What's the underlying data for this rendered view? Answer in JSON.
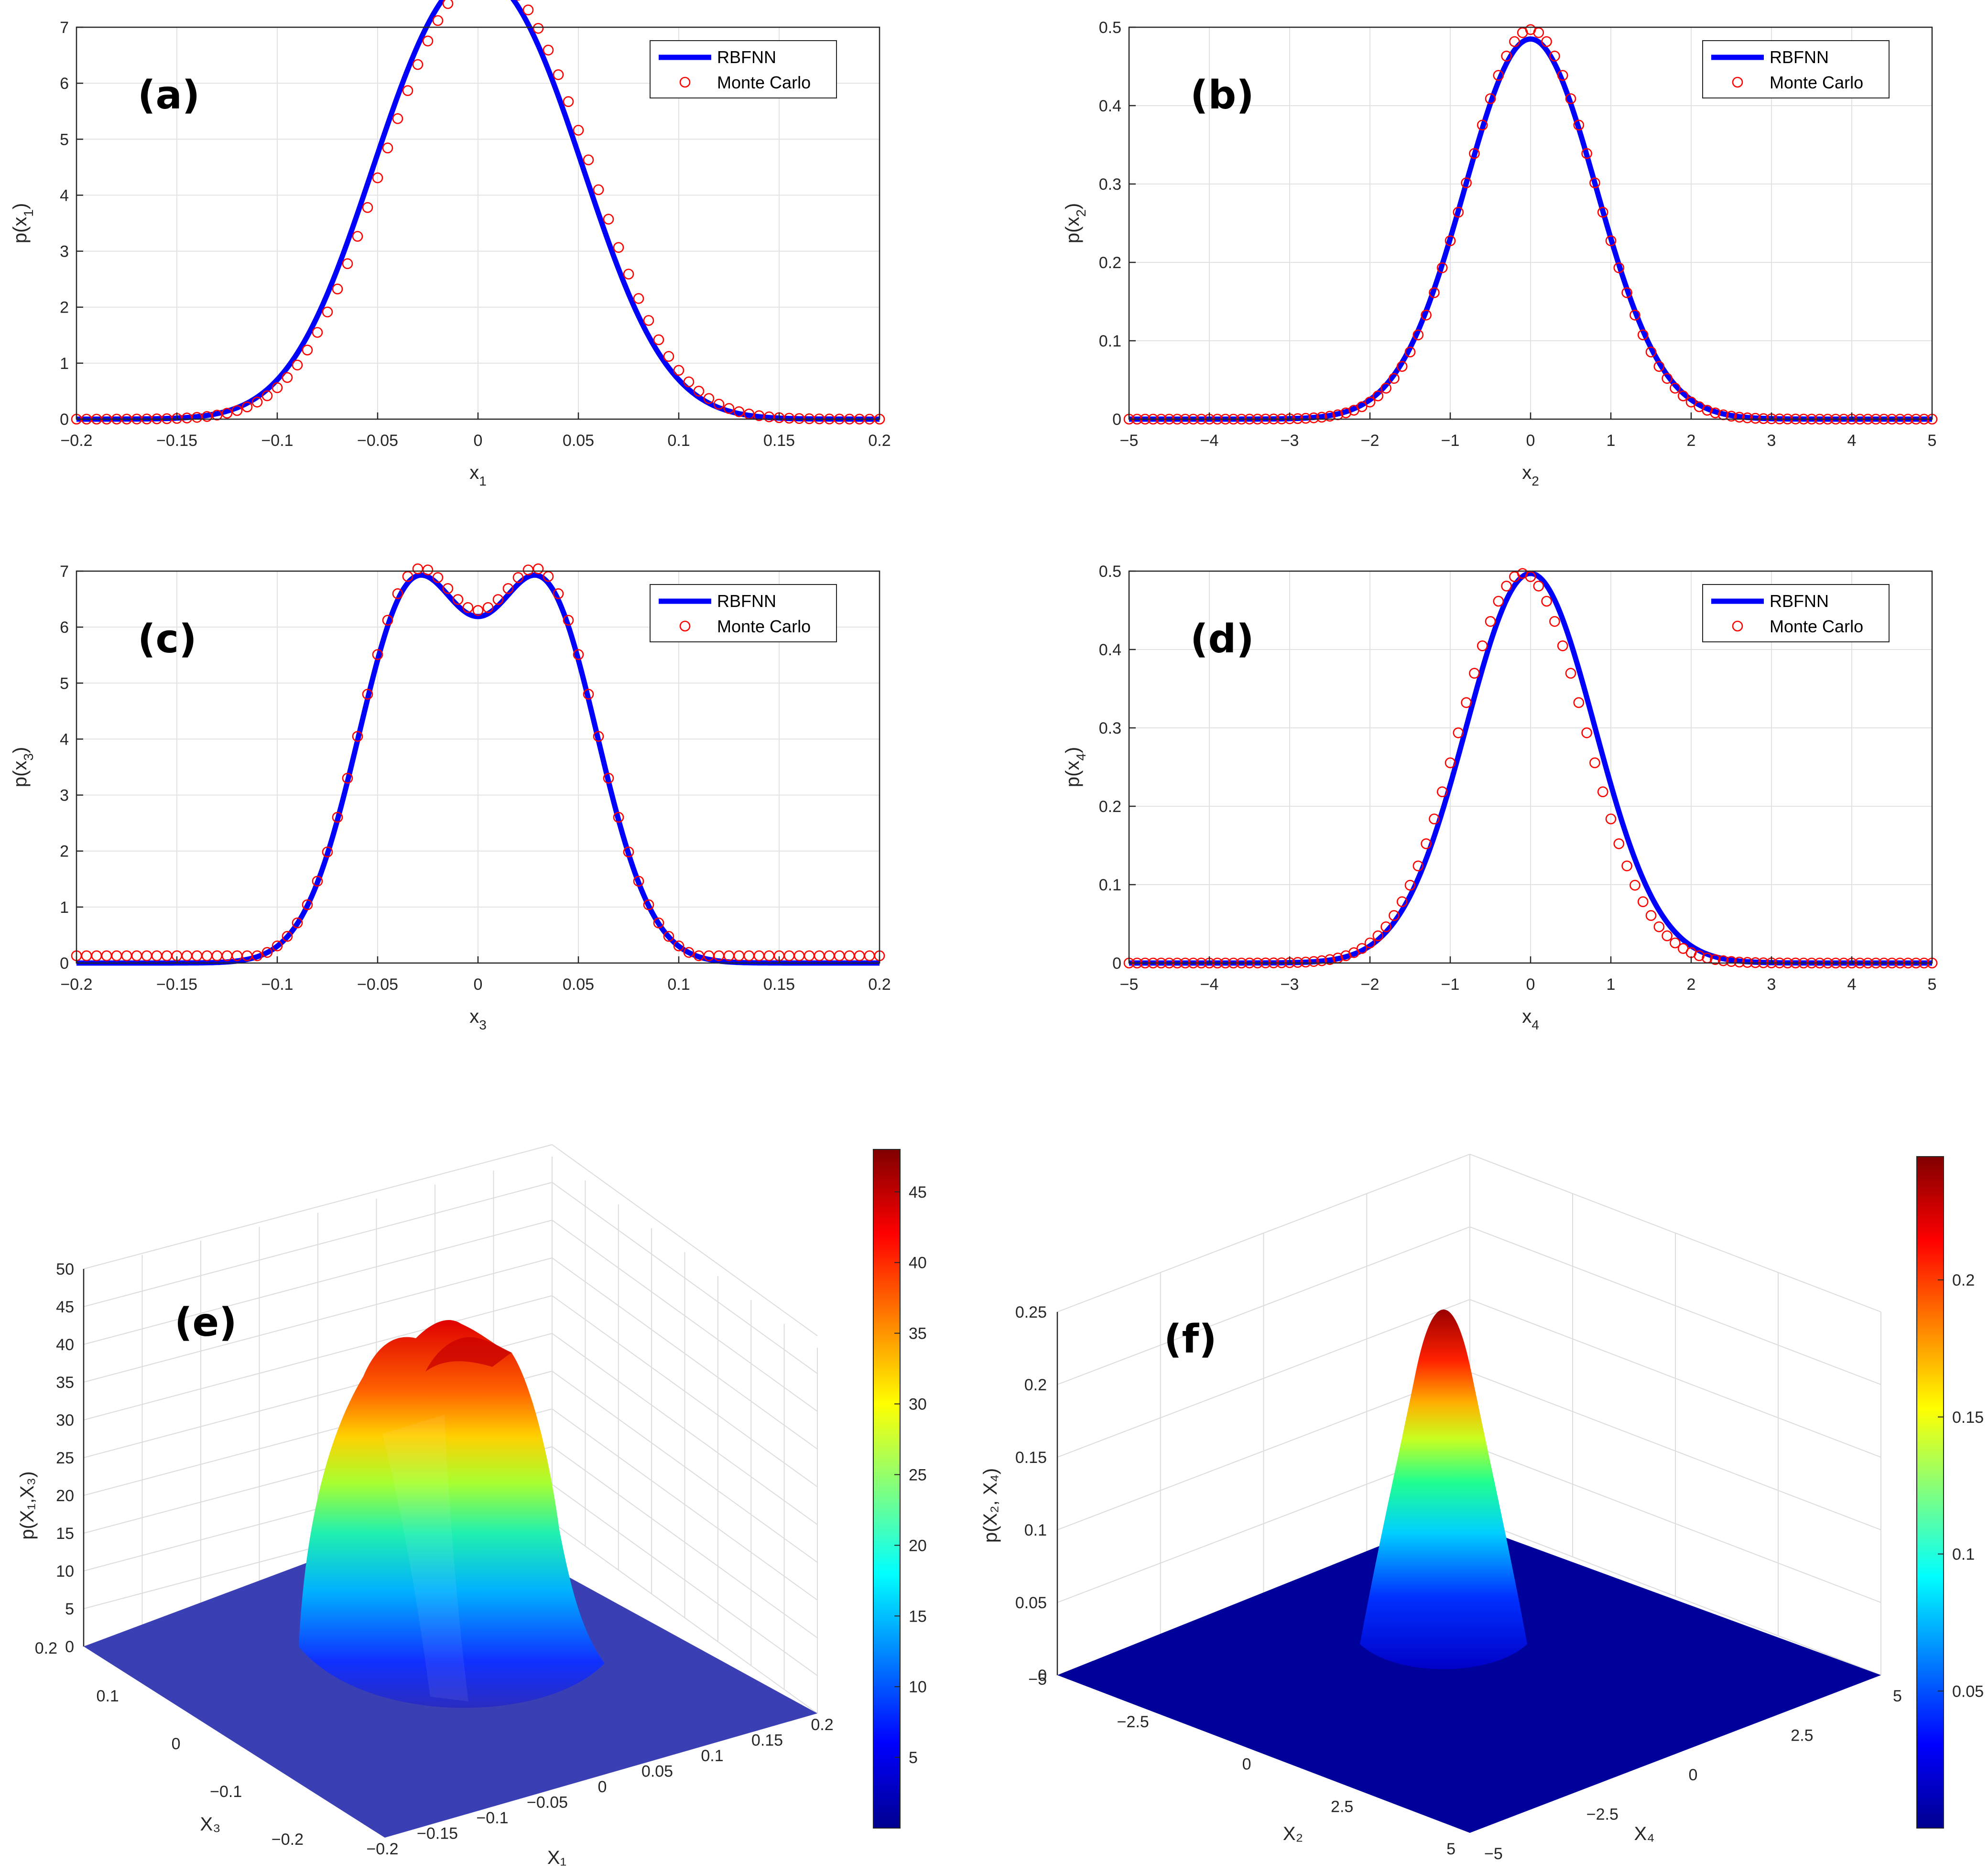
{
  "figure": {
    "panels": [
      {
        "id": "a",
        "label": "(a)",
        "xlabel": "x",
        "xsub": "1",
        "ylabel_pre": "p(x",
        "ysub": "1",
        "ylabel_post": ")",
        "legend": [
          "RBFNN",
          "Monte Carlo"
        ]
      },
      {
        "id": "b",
        "label": "(b)",
        "xlabel": "x",
        "xsub": "2",
        "ylabel_pre": "p(x",
        "ysub": "2",
        "ylabel_post": ")",
        "legend": [
          "RBFNN",
          "Monte Carlo"
        ]
      },
      {
        "id": "c",
        "label": "(c)",
        "xlabel": "x",
        "xsub": "3",
        "ylabel_pre": "p(x",
        "ysub": "3",
        "ylabel_post": ")",
        "legend": [
          "RBFNN",
          "Monte Carlo"
        ]
      },
      {
        "id": "d",
        "label": "(d)",
        "xlabel": "x",
        "xsub": "4",
        "ylabel_pre": "p(x",
        "ysub": "4",
        "ylabel_post": ")",
        "legend": [
          "RBFNN",
          "Monte Carlo"
        ]
      },
      {
        "id": "e",
        "label": "(e)",
        "zlabel": "p(X₁,X₃)",
        "xlabel": "X₁",
        "ylabel": "X₃"
      },
      {
        "id": "f",
        "label": "(f)",
        "zlabel": "p(X₂, X₄)",
        "xlabel": "X₄",
        "ylabel": "X₂"
      }
    ]
  },
  "chart_data": [
    {
      "id": "a",
      "type": "line",
      "series": [
        {
          "name": "RBFNN",
          "kind": "line",
          "color": "#0000ff",
          "model": "bimodal",
          "params": {
            "mu": 0.026,
            "sigma": 0.037,
            "amplitude": 6.98,
            "shift": 0.0
          }
        },
        {
          "name": "Monte Carlo",
          "kind": "scatter",
          "color": "#ff0000",
          "model": "bimodal",
          "params": {
            "mu": 0.026,
            "sigma": 0.037,
            "amplitude": 6.98,
            "shift": 0.004
          },
          "x_range": [
            -0.2,
            0.2
          ],
          "n_points": 81
        }
      ],
      "xlabel": "x1",
      "ylabel": "p(x1)",
      "xlim": [
        -0.2,
        0.2
      ],
      "ylim": [
        0,
        7
      ],
      "xticks": [
        -0.2,
        -0.15,
        -0.1,
        -0.05,
        0,
        0.05,
        0.1,
        0.15,
        0.2
      ],
      "xtick_labels": [
        "−0.2",
        "−0.15",
        "−0.1",
        "−0.05",
        "0",
        "0.05",
        "0.1",
        "0.15",
        "0.2"
      ],
      "yticks": [
        0,
        1,
        2,
        3,
        4,
        5,
        6,
        7
      ],
      "ytick_labels": [
        "0",
        "1",
        "2",
        "3",
        "4",
        "5",
        "6",
        "7"
      ],
      "grid": true,
      "legend_position": "top-right"
    },
    {
      "id": "b",
      "type": "line",
      "series": [
        {
          "name": "RBFNN",
          "kind": "line",
          "color": "#0000ff",
          "model": "gaussian",
          "params": {
            "mu": 0.0,
            "sigma": 0.82,
            "amplitude": 0.485
          }
        },
        {
          "name": "Monte Carlo",
          "kind": "scatter",
          "color": "#ff0000",
          "model": "gaussian",
          "params": {
            "mu": 0.0,
            "sigma": 0.8,
            "amplitude": 0.497
          },
          "x_range": [
            -5,
            5
          ],
          "n_points": 101
        }
      ],
      "xlabel": "x2",
      "ylabel": "p(x2)",
      "xlim": [
        -5,
        5
      ],
      "ylim": [
        0,
        0.5
      ],
      "xticks": [
        -5,
        -4,
        -3,
        -2,
        -1,
        0,
        1,
        2,
        3,
        4,
        5
      ],
      "xtick_labels": [
        "−5",
        "−4",
        "−3",
        "−2",
        "−1",
        "0",
        "1",
        "2",
        "3",
        "4",
        "5"
      ],
      "yticks": [
        0,
        0.1,
        0.2,
        0.3,
        0.4,
        0.5
      ],
      "ytick_labels": [
        "0",
        "0.1",
        "0.2",
        "0.3",
        "0.4",
        "0.5"
      ],
      "grid": true,
      "legend_position": "top-right"
    },
    {
      "id": "c",
      "type": "line",
      "series": [
        {
          "name": "RBFNN",
          "kind": "line",
          "color": "#0000ff",
          "model": "bimodal",
          "params": {
            "mu": 0.033,
            "sigma": 0.027,
            "amplitude": 6.86,
            "shift": 0.0
          }
        },
        {
          "name": "Monte Carlo",
          "kind": "scatter",
          "color": "#ff0000",
          "model": "bimodal",
          "params": {
            "mu": 0.033,
            "sigma": 0.027,
            "amplitude": 6.98,
            "shift": 0.0,
            "floor": 0.13
          },
          "x_range": [
            -0.2,
            0.2
          ],
          "n_points": 81
        }
      ],
      "xlabel": "x3",
      "ylabel": "p(x3)",
      "xlim": [
        -0.2,
        0.2
      ],
      "ylim": [
        0,
        7
      ],
      "xticks": [
        -0.2,
        -0.15,
        -0.1,
        -0.05,
        0,
        0.05,
        0.1,
        0.15,
        0.2
      ],
      "xtick_labels": [
        "−0.2",
        "−0.15",
        "−0.1",
        "−0.05",
        "0",
        "0.05",
        "0.1",
        "0.15",
        "0.2"
      ],
      "yticks": [
        0,
        1,
        2,
        3,
        4,
        5,
        6,
        7
      ],
      "ytick_labels": [
        "0",
        "1",
        "2",
        "3",
        "4",
        "5",
        "6",
        "7"
      ],
      "grid": true,
      "legend_position": "top-right"
    },
    {
      "id": "d",
      "type": "line",
      "series": [
        {
          "name": "RBFNN",
          "kind": "line",
          "color": "#0000ff",
          "model": "gaussian",
          "params": {
            "mu": 0.0,
            "sigma": 0.8,
            "amplitude": 0.497
          }
        },
        {
          "name": "Monte Carlo",
          "kind": "scatter",
          "color": "#ff0000",
          "model": "gaussian",
          "params": {
            "mu": -0.1,
            "sigma": 0.78,
            "amplitude": 0.497
          },
          "x_range": [
            -5,
            5
          ],
          "n_points": 101
        }
      ],
      "xlabel": "x4",
      "ylabel": "p(x4)",
      "xlim": [
        -5,
        5
      ],
      "ylim": [
        0,
        0.5
      ],
      "xticks": [
        -5,
        -4,
        -3,
        -2,
        -1,
        0,
        1,
        2,
        3,
        4,
        5
      ],
      "xtick_labels": [
        "−5",
        "−4",
        "−3",
        "−2",
        "−1",
        "0",
        "1",
        "2",
        "3",
        "4",
        "5"
      ],
      "yticks": [
        0,
        0.1,
        0.2,
        0.3,
        0.4,
        0.5
      ],
      "ytick_labels": [
        "0",
        "0.1",
        "0.2",
        "0.3",
        "0.4",
        "0.5"
      ],
      "grid": true,
      "legend_position": "top-right"
    },
    {
      "id": "e",
      "type": "surface",
      "colormap": "jet",
      "xlabel": "X1",
      "ylabel": "X3",
      "zlabel": "p(X1,X3)",
      "xlim": [
        -0.2,
        0.2
      ],
      "ylim": [
        -0.2,
        0.2
      ],
      "zlim": [
        0,
        50
      ],
      "peak": 48,
      "xticks": [
        -0.2,
        -0.15,
        -0.1,
        -0.05,
        0,
        0.05,
        0.1,
        0.15,
        0.2
      ],
      "xtick_labels": [
        "−0.2",
        "−0.15",
        "−0.1",
        "−0.05",
        "0",
        "0.05",
        "0.1",
        "0.15",
        "0.2"
      ],
      "yticks": [
        0.2,
        0.1,
        0,
        -0.1,
        -0.2
      ],
      "ytick_labels": [
        "0.2",
        "0.1",
        "0",
        "−0.1",
        "−0.2"
      ],
      "zticks": [
        0,
        5,
        10,
        15,
        20,
        25,
        30,
        35,
        40,
        45,
        50
      ],
      "ztick_labels": [
        "0",
        "5",
        "10",
        "15",
        "20",
        "25",
        "30",
        "35",
        "40",
        "45",
        "50"
      ],
      "colorbar_ticks": [
        5,
        10,
        15,
        20,
        25,
        30,
        35,
        40,
        45
      ],
      "colorbar_labels": [
        "5",
        "10",
        "15",
        "20",
        "25",
        "30",
        "35",
        "40",
        "45"
      ],
      "colorbar_range": [
        0,
        48
      ]
    },
    {
      "id": "f",
      "type": "surface",
      "colormap": "jet",
      "xlabel": "X4",
      "ylabel": "X2",
      "zlabel": "p(X2, X4)",
      "xlim": [
        -5,
        5
      ],
      "ylim": [
        -5,
        5
      ],
      "zlim": [
        0,
        0.25
      ],
      "peak": 0.245,
      "xticks": [
        -5,
        -2.5,
        0,
        2.5,
        5
      ],
      "xtick_labels": [
        "−5",
        "−2.5",
        "0",
        "2.5",
        "5"
      ],
      "yticks": [
        -5,
        -2.5,
        0,
        2.5,
        5
      ],
      "ytick_labels": [
        "−5",
        "−2.5",
        "0",
        "2.5",
        "5"
      ],
      "zticks": [
        0,
        0.05,
        0.1,
        0.15,
        0.2,
        0.25
      ],
      "ztick_labels": [
        "0",
        "0.05",
        "0.1",
        "0.15",
        "0.2",
        "0.25"
      ],
      "colorbar_ticks": [
        0.05,
        0.1,
        0.15,
        0.2
      ],
      "colorbar_labels": [
        "0.05",
        "0.1",
        "0.15",
        "0.2"
      ],
      "colorbar_range": [
        0,
        0.245
      ]
    }
  ]
}
